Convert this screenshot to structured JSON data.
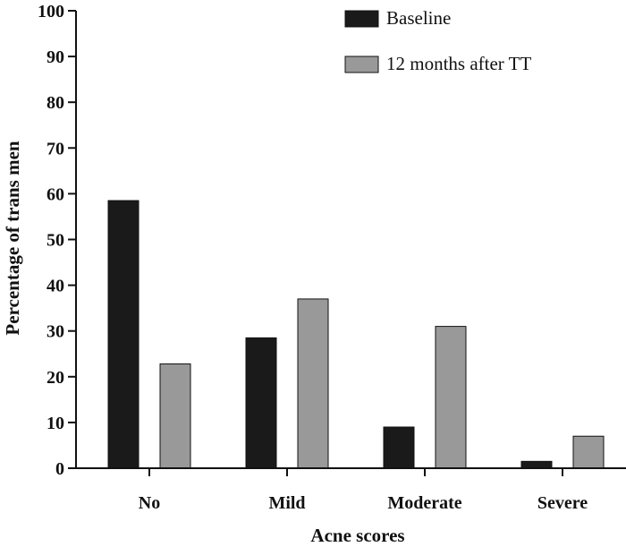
{
  "chart_data": {
    "type": "bar",
    "title": "",
    "xlabel": "Acne scores",
    "ylabel": "Percentage of trans men",
    "ylim": [
      0,
      100
    ],
    "yticks": [
      "0",
      "10",
      "20",
      "30",
      "40",
      "50",
      "60",
      "70",
      "80",
      "90",
      "100"
    ],
    "categories": [
      "No",
      "Mild",
      "Moderate",
      "Severe"
    ],
    "series": [
      {
        "name": "Baseline",
        "values": [
          58.5,
          28.5,
          9,
          1.5
        ],
        "color": "#1a1a1a"
      },
      {
        "name": "12 months after TT",
        "values": [
          22.8,
          37,
          31,
          7
        ],
        "color": "#999999"
      }
    ],
    "legend_position": "top-right",
    "grid": false
  }
}
